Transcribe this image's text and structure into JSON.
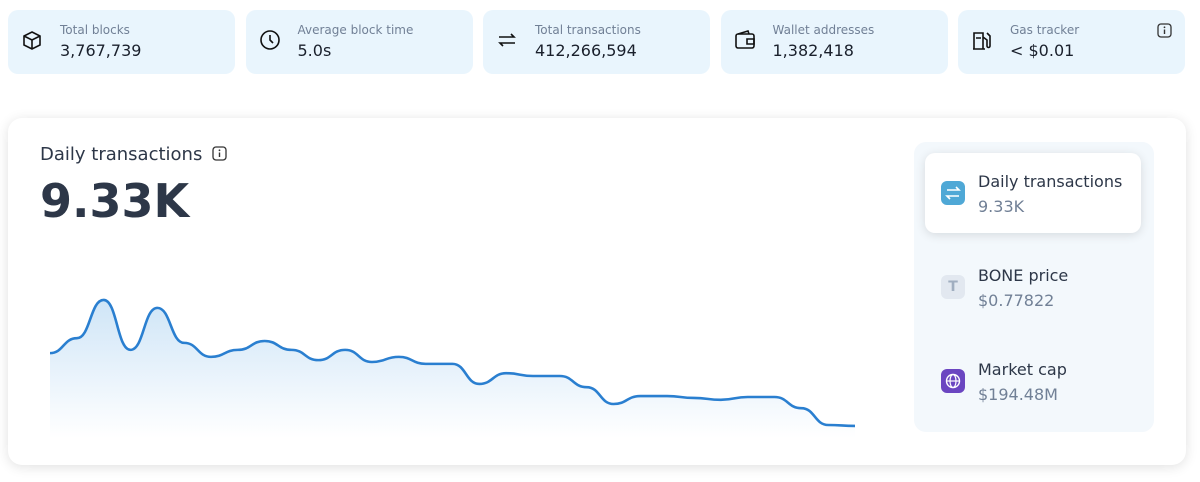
{
  "stats": [
    {
      "label": "Total blocks",
      "value": "3,767,739"
    },
    {
      "label": "Average block time",
      "value": "5.0s"
    },
    {
      "label": "Total transactions",
      "value": "412,266,594"
    },
    {
      "label": "Wallet addresses",
      "value": "1,382,418"
    },
    {
      "label": "Gas tracker",
      "value": "< $0.01"
    }
  ],
  "chart_data": {
    "type": "line",
    "title": "Daily transactions",
    "subtitle": "9.33K",
    "color": "#2a7fd0",
    "values": [
      10890,
      11210,
      12030,
      10960,
      11860,
      11110,
      10810,
      10960,
      11150,
      10960,
      10740,
      10960,
      10700,
      10810,
      10660,
      10660,
      10230,
      10460,
      10400,
      10400,
      10160,
      9800,
      9970,
      9970,
      9930,
      9890,
      9950,
      9950,
      9710,
      9350,
      9330
    ],
    "ylim": [
      9200,
      12200
    ]
  },
  "side": [
    {
      "title": "Daily transactions",
      "value": "9.33K"
    },
    {
      "icon": "T",
      "title": "BONE price",
      "value": "$0.77822"
    },
    {
      "title": "Market cap",
      "value": "$194.48M"
    }
  ]
}
